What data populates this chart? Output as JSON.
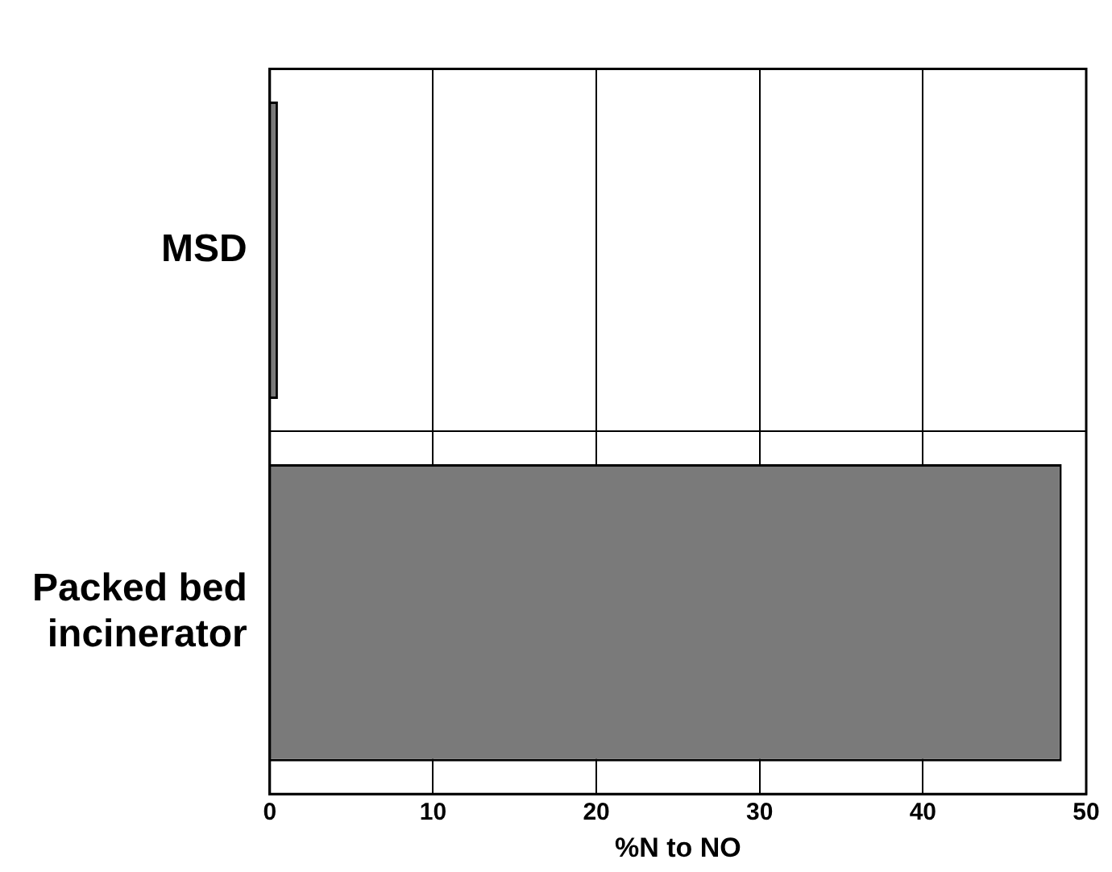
{
  "chart_data": {
    "type": "bar",
    "orientation": "horizontal",
    "categories": [
      "MSD",
      "Packed bed incinerator"
    ],
    "values": [
      0.5,
      48.5
    ],
    "color": "#7a7a7a",
    "xlim": [
      0,
      50
    ],
    "xticks": [
      0,
      10,
      20,
      30,
      40,
      50
    ],
    "xlabel": "%N to NO",
    "grid": true,
    "legend": false
  }
}
